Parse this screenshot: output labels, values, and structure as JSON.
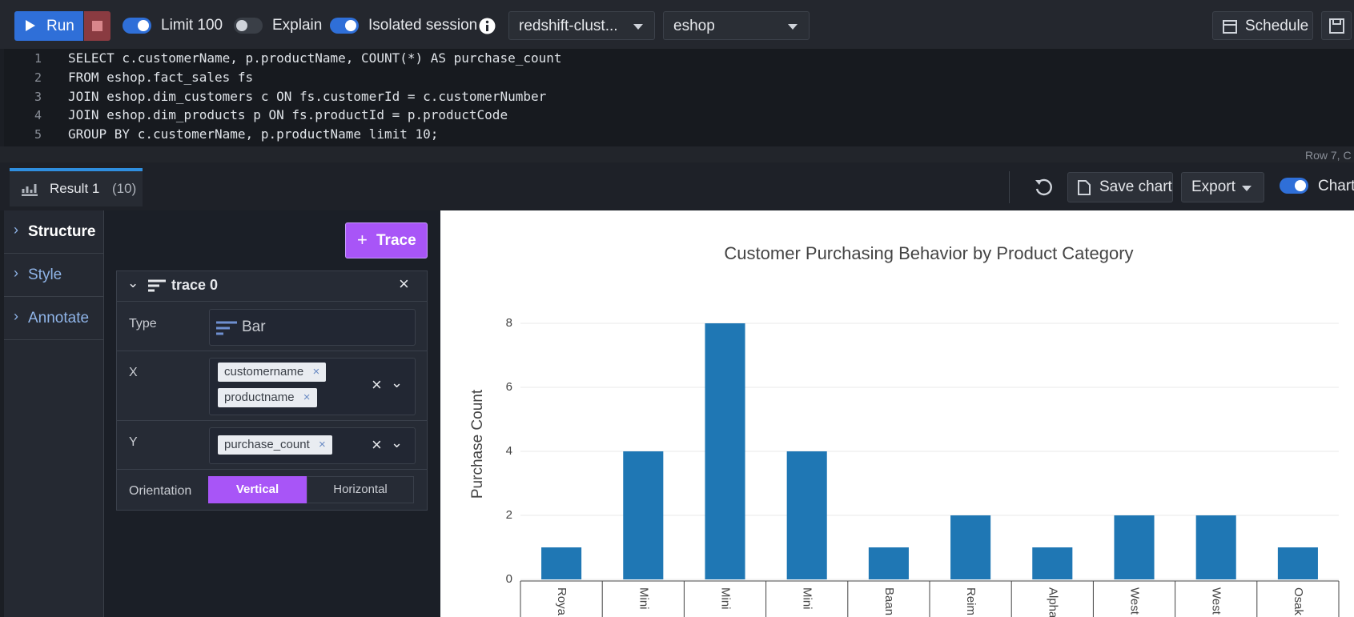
{
  "toolbar": {
    "run": "Run",
    "limit": "Limit 100",
    "explain": "Explain",
    "isolated": "Isolated session",
    "cluster": "redshift-clust...",
    "database": "eshop",
    "schedule": "Schedule"
  },
  "editor": {
    "line_numbers": [
      1,
      2,
      3,
      4,
      5
    ],
    "lines": [
      "SELECT c.customerName, p.productName, COUNT(*) AS purchase_count",
      "FROM eshop.fact_sales fs",
      "JOIN eshop.dim_customers c ON fs.customerId = c.customerNumber",
      "JOIN eshop.dim_products p ON fs.productId = p.productCode",
      "GROUP BY c.customerName, p.productName limit 10;"
    ],
    "status": "Row 7,  C"
  },
  "result_tab": {
    "label": "Result 1",
    "count": "(10)"
  },
  "actions": {
    "save_chart": "Save chart",
    "export": "Export",
    "chart_toggle": "Chart"
  },
  "sidebar": [
    "Structure",
    "Style",
    "Annotate"
  ],
  "trace_panel": {
    "add_trace": "Trace",
    "trace_name": "trace 0",
    "type_label": "Type",
    "type_value": "Bar",
    "x_label": "X",
    "x_tags": [
      "customername",
      "productname"
    ],
    "y_label": "Y",
    "y_tags": [
      "purchase_count"
    ],
    "orientation_label": "Orientation",
    "orientation_options": [
      "Vertical",
      "Horizontal"
    ]
  },
  "chart_data": {
    "type": "bar",
    "title": "Customer Purchasing Behavior by Product Category",
    "y_label": "Purchase Count",
    "categories": [
      "Roya",
      "Mini",
      "Mini",
      "Mini",
      "Baan",
      "Reim",
      "Alpha",
      "West",
      "West",
      "Osak"
    ],
    "values": [
      1,
      4,
      8,
      4,
      1,
      2,
      1,
      2,
      2,
      1
    ],
    "color": "#1f77b4",
    "ylim": [
      0,
      8.5
    ],
    "yticks": [
      0,
      2,
      4,
      6,
      8
    ],
    "grid": true
  }
}
